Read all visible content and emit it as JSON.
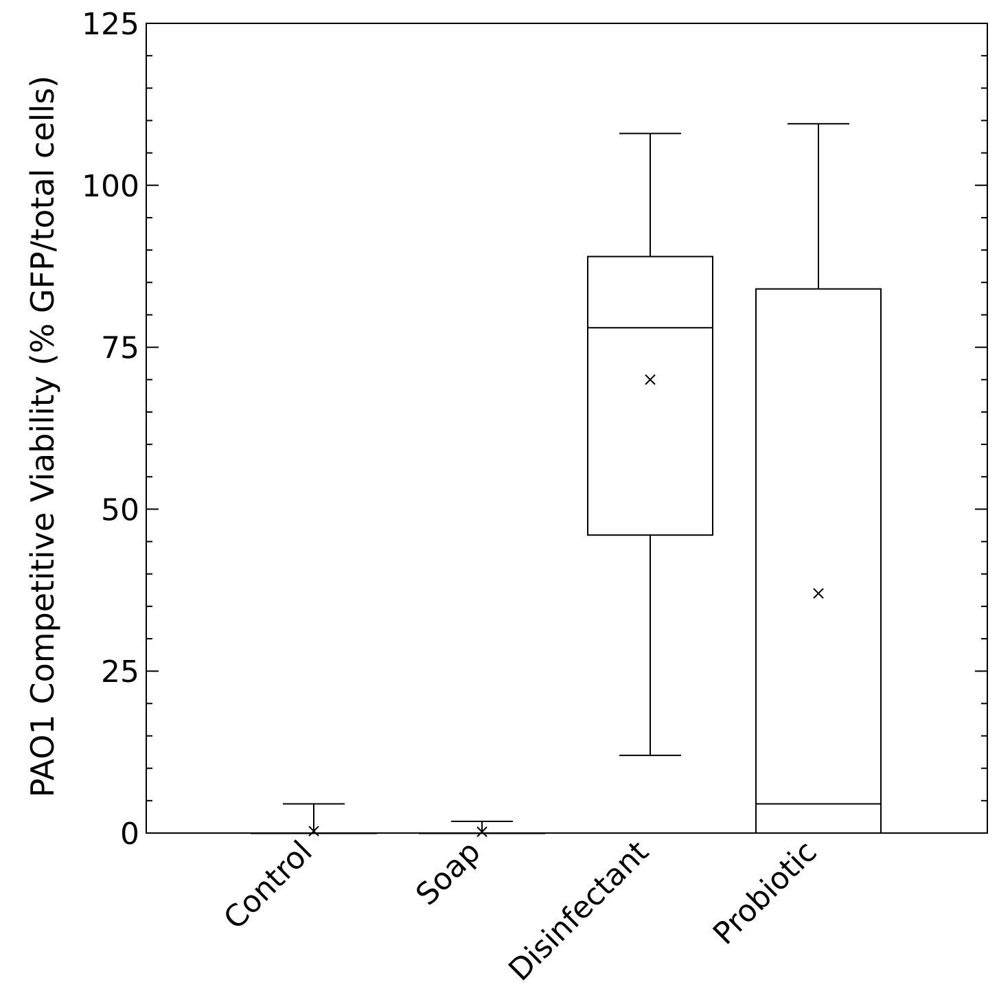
{
  "chart_data": {
    "type": "box",
    "title": "",
    "xlabel": "",
    "ylabel": "PAO1 Competitive Viability (% GFP/total cells)",
    "ylim": [
      0,
      125
    ],
    "yticks": [
      0,
      25,
      50,
      75,
      100,
      125
    ],
    "grid": false,
    "categories": [
      "Control",
      "Soap",
      "Disinfectant",
      "Probiotic"
    ],
    "boxes": [
      {
        "category": "Control",
        "min": 0,
        "q1": 0,
        "median": 0,
        "q3": 0,
        "max": 4.5,
        "mean": 0.3
      },
      {
        "category": "Soap",
        "min": 0,
        "q1": 0,
        "median": 0,
        "q3": 0,
        "max": 1.8,
        "mean": 0.2
      },
      {
        "category": "Disinfectant",
        "min": 12,
        "q1": 46,
        "median": 78,
        "q3": 89,
        "max": 108,
        "mean": 70
      },
      {
        "category": "Probiotic",
        "min": 0,
        "q1": 0,
        "median": 4.5,
        "q3": 84,
        "max": 109.5,
        "mean": 37
      }
    ]
  }
}
